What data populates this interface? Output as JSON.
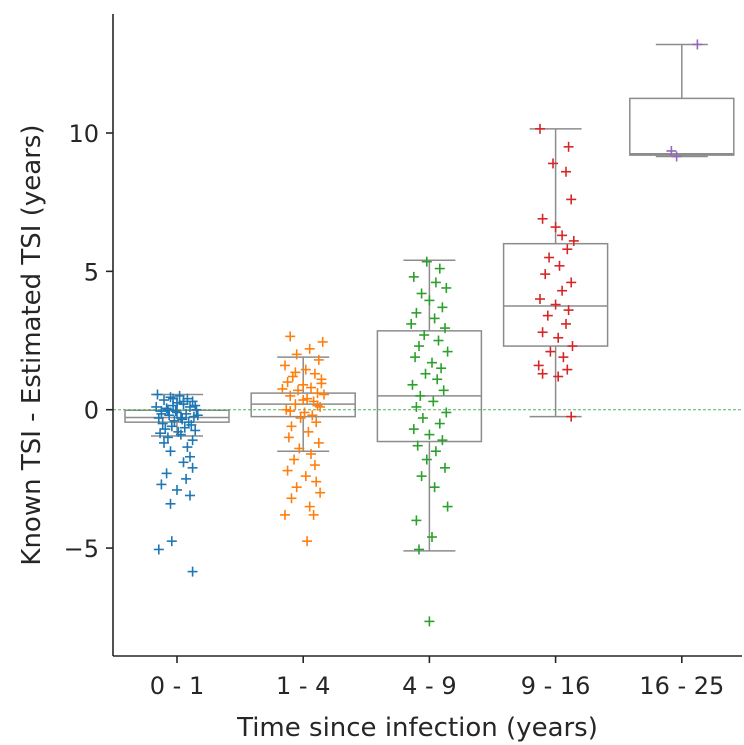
{
  "chart_data": {
    "type": "box",
    "xlabel": "Time since infection (years)",
    "ylabel": "Known TSI - Estimated TSI (years)",
    "ylim": [
      -8.9,
      14.3
    ],
    "yticks": [
      -5,
      0,
      5,
      10
    ],
    "ytick_labels": [
      "−5",
      "0",
      "5",
      "10"
    ],
    "reference_line": 0,
    "categories": [
      "0 - 1",
      "1 - 4",
      "4 - 9",
      "9 - 16",
      "16 - 25"
    ],
    "colors": [
      "#1f77b4",
      "#ff7f0e",
      "#2ca02c",
      "#d62728",
      "#9467bd"
    ],
    "box_color": "#8c8c8c",
    "ref_line_color": "#2ca02c",
    "boxes": [
      {
        "q1": -0.45,
        "median": -0.28,
        "q3": -0.02,
        "whisker_low": -0.95,
        "whisker_high": 0.55
      },
      {
        "q1": -0.25,
        "median": 0.2,
        "q3": 0.6,
        "whisker_low": -1.5,
        "whisker_high": 1.9
      },
      {
        "q1": -1.15,
        "median": 0.5,
        "q3": 2.85,
        "whisker_low": -5.1,
        "whisker_high": 5.4
      },
      {
        "q1": 2.3,
        "median": 3.75,
        "q3": 6.0,
        "whisker_low": -0.25,
        "whisker_high": 10.15
      },
      {
        "q1": 9.2,
        "median": 9.25,
        "q3": 11.25,
        "whisker_low": 9.15,
        "whisker_high": 13.2
      }
    ],
    "series": [
      {
        "category": "0 - 1",
        "points": [
          [
            0.02,
            0.5
          ],
          [
            -0.05,
            0.45
          ],
          [
            0.08,
            0.4
          ],
          [
            -0.1,
            0.35
          ],
          [
            0.12,
            0.3
          ],
          [
            -0.15,
            0.55
          ],
          [
            0.05,
            0.2
          ],
          [
            -0.03,
            0.15
          ],
          [
            0.1,
            0.1
          ],
          [
            -0.08,
            0.05
          ],
          [
            0.15,
            0.0
          ],
          [
            -0.12,
            -0.05
          ],
          [
            0.0,
            -0.1
          ],
          [
            0.07,
            -0.15
          ],
          [
            -0.06,
            -0.2
          ],
          [
            0.13,
            -0.25
          ],
          [
            -0.14,
            -0.3
          ],
          [
            0.04,
            -0.35
          ],
          [
            -0.02,
            -0.4
          ],
          [
            0.09,
            -0.45
          ],
          [
            -0.11,
            -0.5
          ],
          [
            0.11,
            -0.55
          ],
          [
            -0.04,
            -0.6
          ],
          [
            0.06,
            -0.65
          ],
          [
            -0.09,
            -0.7
          ],
          [
            0.14,
            -0.75
          ],
          [
            0.01,
            -0.8
          ],
          [
            -0.13,
            -0.85
          ],
          [
            0.03,
            -0.9
          ],
          [
            -0.07,
            -1.0
          ],
          [
            0.12,
            -1.1
          ],
          [
            -0.1,
            -1.2
          ],
          [
            0.08,
            -1.35
          ],
          [
            -0.05,
            -1.5
          ],
          [
            0.1,
            -1.7
          ],
          [
            0.05,
            -1.9
          ],
          [
            0.12,
            -2.1
          ],
          [
            -0.08,
            -2.3
          ],
          [
            0.07,
            -2.5
          ],
          [
            -0.12,
            -2.7
          ],
          [
            0.0,
            -2.9
          ],
          [
            0.1,
            -3.1
          ],
          [
            -0.05,
            -3.4
          ],
          [
            -0.14,
            -5.05
          ],
          [
            -0.04,
            -4.75
          ],
          [
            0.12,
            -5.85
          ],
          [
            0.0,
            0.25
          ],
          [
            -0.16,
            0.1
          ],
          [
            0.16,
            -0.2
          ],
          [
            -0.01,
            -0.05
          ],
          [
            0.05,
            0.3
          ],
          [
            -0.07,
            0.0
          ],
          [
            0.03,
            -0.3
          ],
          [
            -0.03,
            0.4
          ],
          [
            0.14,
            0.15
          ],
          [
            -0.12,
            -0.15
          ]
        ]
      },
      {
        "category": "1 - 4",
        "points": [
          [
            -0.1,
            2.65
          ],
          [
            0.15,
            2.45
          ],
          [
            0.05,
            2.2
          ],
          [
            -0.05,
            2.0
          ],
          [
            0.12,
            1.8
          ],
          [
            -0.14,
            1.6
          ],
          [
            0.02,
            1.45
          ],
          [
            0.09,
            1.3
          ],
          [
            -0.08,
            1.2
          ],
          [
            0.14,
            1.1
          ],
          [
            -0.12,
            1.0
          ],
          [
            0.0,
            0.9
          ],
          [
            0.06,
            0.8
          ],
          [
            -0.04,
            0.7
          ],
          [
            0.11,
            0.6
          ],
          [
            -0.1,
            0.5
          ],
          [
            0.03,
            0.4
          ],
          [
            0.08,
            0.3
          ],
          [
            -0.06,
            0.2
          ],
          [
            0.13,
            0.1
          ],
          [
            -0.13,
            0.0
          ],
          [
            0.01,
            -0.1
          ],
          [
            0.07,
            -0.2
          ],
          [
            -0.02,
            -0.3
          ],
          [
            0.1,
            -0.45
          ],
          [
            -0.09,
            -0.6
          ],
          [
            0.04,
            -0.8
          ],
          [
            -0.11,
            -1.0
          ],
          [
            0.12,
            -1.2
          ],
          [
            -0.03,
            -1.4
          ],
          [
            0.06,
            -1.6
          ],
          [
            -0.07,
            -1.8
          ],
          [
            0.09,
            -2.0
          ],
          [
            -0.12,
            -2.2
          ],
          [
            0.02,
            -2.4
          ],
          [
            0.1,
            -2.6
          ],
          [
            -0.05,
            -2.8
          ],
          [
            0.13,
            -3.0
          ],
          [
            -0.09,
            -3.2
          ],
          [
            0.05,
            -3.5
          ],
          [
            -0.14,
            -3.8
          ],
          [
            0.08,
            -3.8
          ],
          [
            0.03,
            -4.75
          ],
          [
            0.16,
            0.55
          ],
          [
            -0.16,
            0.75
          ],
          [
            0.0,
            0.35
          ],
          [
            0.14,
            0.95
          ],
          [
            -0.06,
            1.35
          ],
          [
            0.11,
            0.15
          ],
          [
            -0.1,
            -0.05
          ]
        ]
      },
      {
        "category": "4 - 9",
        "points": [
          [
            -0.02,
            5.35
          ],
          [
            0.08,
            5.1
          ],
          [
            -0.12,
            4.8
          ],
          [
            0.05,
            4.6
          ],
          [
            0.13,
            4.4
          ],
          [
            -0.06,
            4.2
          ],
          [
            0.0,
            3.95
          ],
          [
            0.1,
            3.7
          ],
          [
            -0.1,
            3.5
          ],
          [
            0.04,
            3.3
          ],
          [
            -0.14,
            3.1
          ],
          [
            0.12,
            2.95
          ],
          [
            -0.04,
            2.7
          ],
          [
            0.07,
            2.5
          ],
          [
            -0.08,
            2.3
          ],
          [
            0.14,
            2.1
          ],
          [
            -0.11,
            1.9
          ],
          [
            0.02,
            1.7
          ],
          [
            0.09,
            1.5
          ],
          [
            -0.03,
            1.3
          ],
          [
            0.06,
            1.1
          ],
          [
            -0.13,
            0.9
          ],
          [
            0.11,
            0.7
          ],
          [
            -0.07,
            0.5
          ],
          [
            0.03,
            0.3
          ],
          [
            -0.1,
            0.1
          ],
          [
            0.13,
            -0.1
          ],
          [
            -0.05,
            -0.3
          ],
          [
            0.08,
            -0.5
          ],
          [
            -0.12,
            -0.7
          ],
          [
            0.0,
            -0.9
          ],
          [
            0.1,
            -1.1
          ],
          [
            -0.09,
            -1.3
          ],
          [
            0.05,
            -1.5
          ],
          [
            -0.02,
            -1.8
          ],
          [
            0.12,
            -2.1
          ],
          [
            -0.06,
            -2.4
          ],
          [
            0.04,
            -2.8
          ],
          [
            0.14,
            -3.5
          ],
          [
            -0.1,
            -4.0
          ],
          [
            0.02,
            -4.6
          ],
          [
            -0.08,
            -5.05
          ],
          [
            0.0,
            -7.65
          ]
        ]
      },
      {
        "category": "9 - 16",
        "points": [
          [
            -0.12,
            10.15
          ],
          [
            0.1,
            9.5
          ],
          [
            -0.02,
            8.9
          ],
          [
            0.08,
            8.6
          ],
          [
            0.12,
            7.6
          ],
          [
            -0.1,
            6.9
          ],
          [
            0.0,
            6.6
          ],
          [
            0.05,
            6.3
          ],
          [
            0.14,
            6.1
          ],
          [
            0.09,
            5.8
          ],
          [
            -0.05,
            5.5
          ],
          [
            0.03,
            5.2
          ],
          [
            -0.08,
            4.9
          ],
          [
            0.12,
            4.6
          ],
          [
            0.05,
            4.3
          ],
          [
            -0.12,
            4.0
          ],
          [
            0.0,
            3.8
          ],
          [
            0.1,
            3.6
          ],
          [
            -0.06,
            3.4
          ],
          [
            0.08,
            3.1
          ],
          [
            -0.1,
            2.8
          ],
          [
            0.02,
            2.6
          ],
          [
            0.13,
            2.3
          ],
          [
            -0.04,
            2.1
          ],
          [
            0.06,
            1.9
          ],
          [
            -0.13,
            1.6
          ],
          [
            0.09,
            1.45
          ],
          [
            -0.1,
            1.3
          ],
          [
            0.02,
            1.2
          ],
          [
            0.12,
            -0.25
          ]
        ]
      },
      {
        "category": "16 - 25",
        "points": [
          [
            0.12,
            13.2
          ],
          [
            -0.08,
            9.35
          ],
          [
            -0.04,
            9.15
          ]
        ]
      }
    ]
  }
}
